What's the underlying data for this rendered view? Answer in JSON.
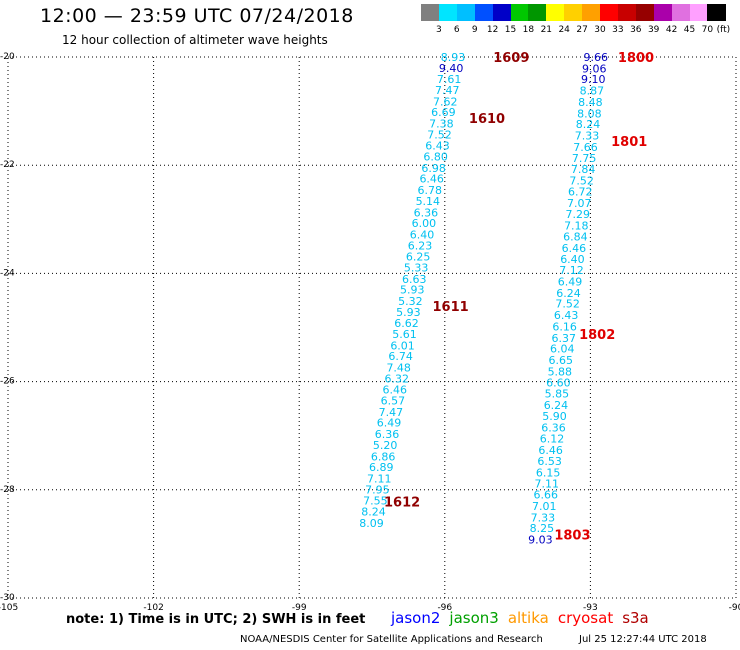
{
  "header": {
    "title": "12:00 — 23:59 UTC 07/24/2018",
    "subtitle": "12 hour collection of altimeter wave heights"
  },
  "color_scale": {
    "unit": "(ft)",
    "labels": [
      "3",
      "6",
      "9",
      "12",
      "15",
      "18",
      "21",
      "24",
      "27",
      "30",
      "33",
      "36",
      "39",
      "42",
      "45",
      "70"
    ],
    "colors": [
      "#808080",
      "#00e5ff",
      "#00bfff",
      "#0050ff",
      "#0000c8",
      "#00c800",
      "#009600",
      "#ffff00",
      "#ffd000",
      "#ffa000",
      "#ff0000",
      "#c80000",
      "#960000",
      "#aa00aa",
      "#e070e0",
      "#ffa0ff",
      "#000000"
    ]
  },
  "footer": {
    "note": "note: 1) Time is in UTC; 2) SWH is in feet",
    "satellites": [
      {
        "name": "jason2",
        "color": "#0000ff"
      },
      {
        "name": "jason3",
        "color": "#00a000"
      },
      {
        "name": "altika",
        "color": "#ff9900"
      },
      {
        "name": "cryosat",
        "color": "#ff0000"
      },
      {
        "name": "s3a",
        "color": "#b00000"
      }
    ],
    "credit": "NOAA/NESDIS Center for Satellite Applications and Research",
    "timestamp": "Jul 25 12:27:44 UTC 2018"
  },
  "chart_data": {
    "type": "scatter",
    "title": "12:00 — 23:59 UTC 07/24/2018",
    "subtitle": "12 hour collection of altimeter wave heights",
    "xlim": [
      -105,
      -90
    ],
    "ylim": [
      -30,
      -20
    ],
    "x_ticks": [
      -105,
      -102,
      -99,
      -96,
      -93,
      -90
    ],
    "y_ticks": [
      -20,
      -22,
      -24,
      -26,
      -28,
      -30
    ],
    "grid": true,
    "colors": {
      "light": "#00c0f0",
      "dark": "#0000c0",
      "label_s3a": "#900000",
      "label_cryosat": "#e00000"
    },
    "series": [
      {
        "name": "track_left",
        "points": [
          {
            "lon": -95.83,
            "lat": -20.0,
            "v": "8.93",
            "c": "light"
          },
          {
            "lon": -95.87,
            "lat": -20.2,
            "v": "9.40",
            "c": "dark"
          },
          {
            "lon": -95.91,
            "lat": -20.41,
            "v": "7.61",
            "c": "light"
          },
          {
            "lon": -95.95,
            "lat": -20.61,
            "v": "7.47",
            "c": "light"
          },
          {
            "lon": -95.99,
            "lat": -20.82,
            "v": "7.62",
            "c": "light"
          },
          {
            "lon": -96.03,
            "lat": -21.02,
            "v": "6.69",
            "c": "light"
          },
          {
            "lon": -96.07,
            "lat": -21.23,
            "v": "7.38",
            "c": "light"
          },
          {
            "lon": -96.11,
            "lat": -21.43,
            "v": "7.52",
            "c": "light"
          },
          {
            "lon": -96.15,
            "lat": -21.64,
            "v": "6.43",
            "c": "light"
          },
          {
            "lon": -96.19,
            "lat": -21.84,
            "v": "6.80",
            "c": "light"
          },
          {
            "lon": -96.23,
            "lat": -22.05,
            "v": "6.98",
            "c": "light"
          },
          {
            "lon": -96.27,
            "lat": -22.25,
            "v": "6.46",
            "c": "light"
          },
          {
            "lon": -96.31,
            "lat": -22.46,
            "v": "6.78",
            "c": "light"
          },
          {
            "lon": -96.35,
            "lat": -22.66,
            "v": "5.14",
            "c": "light"
          },
          {
            "lon": -96.39,
            "lat": -22.87,
            "v": "6.36",
            "c": "light"
          },
          {
            "lon": -96.43,
            "lat": -23.07,
            "v": "6.00",
            "c": "light"
          },
          {
            "lon": -96.47,
            "lat": -23.28,
            "v": "6.40",
            "c": "light"
          },
          {
            "lon": -96.51,
            "lat": -23.48,
            "v": "6.23",
            "c": "light"
          },
          {
            "lon": -96.55,
            "lat": -23.69,
            "v": "6.25",
            "c": "light"
          },
          {
            "lon": -96.59,
            "lat": -23.89,
            "v": "5.33",
            "c": "light"
          },
          {
            "lon": -96.63,
            "lat": -24.1,
            "v": "6.63",
            "c": "light"
          },
          {
            "lon": -96.67,
            "lat": -24.3,
            "v": "5.93",
            "c": "light"
          },
          {
            "lon": -96.71,
            "lat": -24.51,
            "v": "5.32",
            "c": "light"
          },
          {
            "lon": -96.75,
            "lat": -24.71,
            "v": "5.93",
            "c": "light"
          },
          {
            "lon": -96.79,
            "lat": -24.92,
            "v": "6.62",
            "c": "light"
          },
          {
            "lon": -96.83,
            "lat": -25.12,
            "v": "5.61",
            "c": "light"
          },
          {
            "lon": -96.87,
            "lat": -25.33,
            "v": "6.01",
            "c": "light"
          },
          {
            "lon": -96.91,
            "lat": -25.53,
            "v": "6.74",
            "c": "light"
          },
          {
            "lon": -96.95,
            "lat": -25.74,
            "v": "7.48",
            "c": "light"
          },
          {
            "lon": -96.99,
            "lat": -25.94,
            "v": "6.32",
            "c": "light"
          },
          {
            "lon": -97.03,
            "lat": -26.15,
            "v": "6.46",
            "c": "light"
          },
          {
            "lon": -97.07,
            "lat": -26.35,
            "v": "6.57",
            "c": "light"
          },
          {
            "lon": -97.11,
            "lat": -26.56,
            "v": "7.47",
            "c": "light"
          },
          {
            "lon": -97.15,
            "lat": -26.76,
            "v": "6.49",
            "c": "light"
          },
          {
            "lon": -97.19,
            "lat": -26.97,
            "v": "6.36",
            "c": "light"
          },
          {
            "lon": -97.23,
            "lat": -27.17,
            "v": "5.20",
            "c": "light"
          },
          {
            "lon": -97.27,
            "lat": -27.38,
            "v": "6.86",
            "c": "light"
          },
          {
            "lon": -97.31,
            "lat": -27.58,
            "v": "6.89",
            "c": "light"
          },
          {
            "lon": -97.35,
            "lat": -27.79,
            "v": "7.11",
            "c": "light"
          },
          {
            "lon": -97.39,
            "lat": -27.99,
            "v": "7.95",
            "c": "light"
          },
          {
            "lon": -97.43,
            "lat": -28.2,
            "v": "7.55",
            "c": "light"
          },
          {
            "lon": -97.47,
            "lat": -28.4,
            "v": "8.24",
            "c": "light"
          },
          {
            "lon": -97.51,
            "lat": -28.61,
            "v": "8.09",
            "c": "light"
          }
        ]
      },
      {
        "name": "track_right",
        "points": [
          {
            "lon": -92.89,
            "lat": -20.0,
            "v": "9.66",
            "c": "dark"
          },
          {
            "lon": -92.92,
            "lat": -20.21,
            "v": "9.06",
            "c": "dark"
          },
          {
            "lon": -92.94,
            "lat": -20.41,
            "v": "9.10",
            "c": "dark"
          },
          {
            "lon": -92.97,
            "lat": -20.62,
            "v": "8.87",
            "c": "light"
          },
          {
            "lon": -93.0,
            "lat": -20.83,
            "v": "8.48",
            "c": "light"
          },
          {
            "lon": -93.02,
            "lat": -21.04,
            "v": "8.08",
            "c": "light"
          },
          {
            "lon": -93.05,
            "lat": -21.24,
            "v": "8.24",
            "c": "light"
          },
          {
            "lon": -93.07,
            "lat": -21.45,
            "v": "7.33",
            "c": "light"
          },
          {
            "lon": -93.1,
            "lat": -21.66,
            "v": "7.66",
            "c": "light"
          },
          {
            "lon": -93.13,
            "lat": -21.87,
            "v": "7.75",
            "c": "light"
          },
          {
            "lon": -93.15,
            "lat": -22.07,
            "v": "7.84",
            "c": "light"
          },
          {
            "lon": -93.18,
            "lat": -22.28,
            "v": "7.52",
            "c": "light"
          },
          {
            "lon": -93.21,
            "lat": -22.49,
            "v": "6.72",
            "c": "light"
          },
          {
            "lon": -93.23,
            "lat": -22.7,
            "v": "7.07",
            "c": "light"
          },
          {
            "lon": -93.26,
            "lat": -22.9,
            "v": "7.29",
            "c": "light"
          },
          {
            "lon": -93.29,
            "lat": -23.11,
            "v": "7.18",
            "c": "light"
          },
          {
            "lon": -93.31,
            "lat": -23.32,
            "v": "6.84",
            "c": "light"
          },
          {
            "lon": -93.34,
            "lat": -23.53,
            "v": "6.46",
            "c": "light"
          },
          {
            "lon": -93.37,
            "lat": -23.73,
            "v": "6.40",
            "c": "light"
          },
          {
            "lon": -93.39,
            "lat": -23.94,
            "v": "7.12",
            "c": "light"
          },
          {
            "lon": -93.42,
            "lat": -24.15,
            "v": "6.49",
            "c": "light"
          },
          {
            "lon": -93.45,
            "lat": -24.36,
            "v": "6.24",
            "c": "light"
          },
          {
            "lon": -93.47,
            "lat": -24.56,
            "v": "7.52",
            "c": "light"
          },
          {
            "lon": -93.5,
            "lat": -24.77,
            "v": "6.43",
            "c": "light"
          },
          {
            "lon": -93.53,
            "lat": -24.98,
            "v": "6.16",
            "c": "light"
          },
          {
            "lon": -93.55,
            "lat": -25.19,
            "v": "6.37",
            "c": "light"
          },
          {
            "lon": -93.58,
            "lat": -25.39,
            "v": "6.04",
            "c": "light"
          },
          {
            "lon": -93.61,
            "lat": -25.6,
            "v": "6.65",
            "c": "light"
          },
          {
            "lon": -93.63,
            "lat": -25.81,
            "v": "5.88",
            "c": "light"
          },
          {
            "lon": -93.66,
            "lat": -26.02,
            "v": "6.60",
            "c": "light"
          },
          {
            "lon": -93.69,
            "lat": -26.22,
            "v": "5.85",
            "c": "light"
          },
          {
            "lon": -93.71,
            "lat": -26.43,
            "v": "6.24",
            "c": "light"
          },
          {
            "lon": -93.74,
            "lat": -26.64,
            "v": "5.90",
            "c": "light"
          },
          {
            "lon": -93.76,
            "lat": -26.85,
            "v": "6.36",
            "c": "light"
          },
          {
            "lon": -93.79,
            "lat": -27.05,
            "v": "6.12",
            "c": "light"
          },
          {
            "lon": -93.82,
            "lat": -27.26,
            "v": "6.46",
            "c": "light"
          },
          {
            "lon": -93.84,
            "lat": -27.47,
            "v": "6.53",
            "c": "light"
          },
          {
            "lon": -93.87,
            "lat": -27.68,
            "v": "6.15",
            "c": "light"
          },
          {
            "lon": -93.9,
            "lat": -27.88,
            "v": "7.11",
            "c": "light"
          },
          {
            "lon": -93.92,
            "lat": -28.09,
            "v": "6.66",
            "c": "light"
          },
          {
            "lon": -93.95,
            "lat": -28.3,
            "v": "7.01",
            "c": "light"
          },
          {
            "lon": -93.98,
            "lat": -28.51,
            "v": "7.33",
            "c": "light"
          },
          {
            "lon": -94.0,
            "lat": -28.71,
            "v": "8.25",
            "c": "light"
          },
          {
            "lon": -94.03,
            "lat": -28.92,
            "v": "9.03",
            "c": "dark"
          }
        ]
      }
    ],
    "time_labels": [
      {
        "text": "1609",
        "lon": -94.63,
        "lat": -20.0,
        "c": "label_s3a"
      },
      {
        "text": "1610",
        "lon": -95.13,
        "lat": -21.13,
        "c": "label_s3a"
      },
      {
        "text": "1611",
        "lon": -95.88,
        "lat": -24.6,
        "c": "label_s3a"
      },
      {
        "text": "1612",
        "lon": -96.88,
        "lat": -28.22,
        "c": "label_s3a"
      },
      {
        "text": "1800",
        "lon": -92.06,
        "lat": -20.0,
        "c": "label_cryosat"
      },
      {
        "text": "1801",
        "lon": -92.2,
        "lat": -21.55,
        "c": "label_cryosat"
      },
      {
        "text": "1802",
        "lon": -92.86,
        "lat": -25.12,
        "c": "label_cryosat"
      },
      {
        "text": "1803",
        "lon": -93.37,
        "lat": -28.83,
        "c": "label_cryosat"
      }
    ]
  }
}
